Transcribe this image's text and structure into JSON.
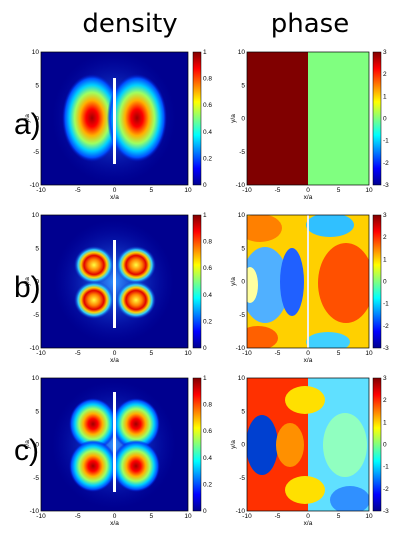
{
  "columns": [
    {
      "title": "density",
      "colorbar_ticks": [
        "1",
        "0.8",
        "0.6",
        "0.4",
        "0.2",
        "0"
      ]
    },
    {
      "title": "phase",
      "colorbar_ticks": [
        "3",
        "2",
        "1",
        "0",
        "-1",
        "-2",
        "-3"
      ]
    }
  ],
  "rows": [
    {
      "label": "a)"
    },
    {
      "label": "b)"
    },
    {
      "label": "c)"
    }
  ],
  "axes": {
    "xlabel": "x/a",
    "ylabel": "y/a",
    "xticks": [
      "-10",
      "-5",
      "0",
      "5",
      "10"
    ],
    "yticks": [
      "10",
      "5",
      "0",
      "-5",
      "-10"
    ],
    "xlim": [
      -10,
      10
    ],
    "ylim": [
      -10,
      10
    ]
  },
  "chart_data": [
    {
      "type": "heatmap",
      "row": "a)",
      "quantity": "density",
      "range": [
        0,
        1
      ],
      "lobes": "two vertically elongated lobes at x = ±3, separated by a barrier at x = 0",
      "peak": 1
    },
    {
      "type": "heatmap",
      "row": "a)",
      "quantity": "phase",
      "range": [
        -3,
        3
      ],
      "regions": [
        {
          "x_range": [
            -10,
            0
          ],
          "value": 3
        },
        {
          "x_range": [
            0,
            10
          ],
          "value": 0.3
        }
      ]
    },
    {
      "type": "heatmap",
      "row": "b)",
      "quantity": "density",
      "range": [
        0,
        1
      ],
      "lobes": "two lobes at x = ±3 each containing ring/vortex structure"
    },
    {
      "type": "heatmap",
      "row": "b)",
      "quantity": "phase",
      "range": [
        -3,
        3
      ],
      "regions": "vortex pattern with phase windings on both sides of x = 0"
    },
    {
      "type": "heatmap",
      "row": "c)",
      "quantity": "density",
      "range": [
        0,
        1
      ],
      "lobes": "two lobes at x = ±3 with a waist at y = 0"
    },
    {
      "type": "heatmap",
      "row": "c)",
      "quantity": "phase",
      "range": [
        -3,
        3
      ],
      "regions": "left half near 3 with blue dips at edges, right half near 0"
    }
  ],
  "colors": {
    "jet": [
      "#00008f",
      "#0000ff",
      "#00ffff",
      "#ffff00",
      "#ff0000",
      "#800000"
    ],
    "barrier": "#ffffff"
  }
}
